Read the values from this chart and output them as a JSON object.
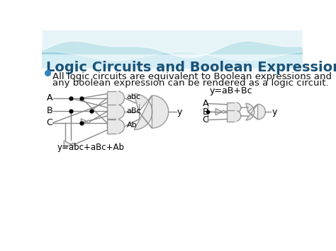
{
  "title": "Logic Circuits and Boolean Expressions",
  "title_color": "#1a5276",
  "title_fontsize": 14,
  "bullet_text_line1": "All logic circuits are equivalent to Boolean expressions and",
  "bullet_text_line2": "any boolean expression can be rendered as a logic circuit.",
  "bullet_fontsize": 9.5,
  "diagram1_label_bottom": "y=abc+aBc+Ab",
  "diagram2_label": "y=aB+Bc",
  "wire_color": "#888888",
  "gate_fc": "#e8e8e8",
  "gate_ec": "#999999",
  "gate_lw": 1.0,
  "bullet_color": "#2e86c1",
  "text_color": "#111111"
}
